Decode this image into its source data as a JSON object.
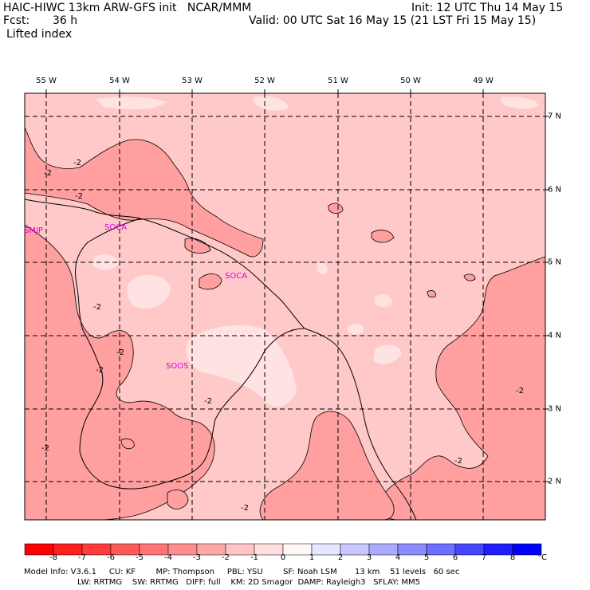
{
  "header": {
    "title_left": "HAIC-HIWC 13km ARW-GFS init   NCAR/MMM",
    "fcst_label": "Fcst:",
    "fcst_value": "36 h",
    "field": "Lifted index",
    "init": "Init: 12 UTC Thu 14 May 15",
    "valid": "Valid: 00 UTC Sat 16 May 15 (21 LST Fri 15 May 15)"
  },
  "map": {
    "lon_labels": [
      "55 W",
      "54 W",
      "53 W",
      "52 W",
      "51 W",
      "50 W",
      "49 W"
    ],
    "lat_labels": [
      "7 N",
      "6 N",
      "5 N",
      "4 N",
      "3 N",
      "2 N"
    ],
    "stations": [
      "SMJP",
      "SOCA",
      "SOCA",
      "SOOS"
    ],
    "contour_labels": [
      "-2",
      "-2",
      "-2",
      "-2",
      "-2",
      "-2",
      "-2",
      "-2",
      "-2",
      "-2",
      "-2"
    ]
  },
  "colorbar": {
    "ticks": [
      "-8",
      "-7",
      "-6",
      "-5",
      "-4",
      "-3",
      "-2",
      "-1",
      "0",
      "1",
      "2",
      "3",
      "4",
      "5",
      "6",
      "7",
      "8"
    ],
    "unit": "°C",
    "colors": [
      "#ff0000",
      "#ff2020",
      "#ff3c3c",
      "#ff5a5a",
      "#ff7474",
      "#ff8e8e",
      "#ffa8a8",
      "#ffc4c4",
      "#ffdede",
      "#fff6f6",
      "#e6e6ff",
      "#c8c8ff",
      "#aaaaff",
      "#8c8cff",
      "#6e6eff",
      "#4646ff",
      "#1e1eff",
      "#0000ff"
    ]
  },
  "footer": {
    "line1": "Model Info: V3.6.1     CU: KF        MP: Thompson     PBL: YSU        SF: Noah LSM       13 km    51 levels   60 sec",
    "line2": "LW: RRTMG    SW: RRTMG   DIFF: full    KM: 2D Smagor  DAMP: Rayleigh3   SFLAY: MM5"
  }
}
